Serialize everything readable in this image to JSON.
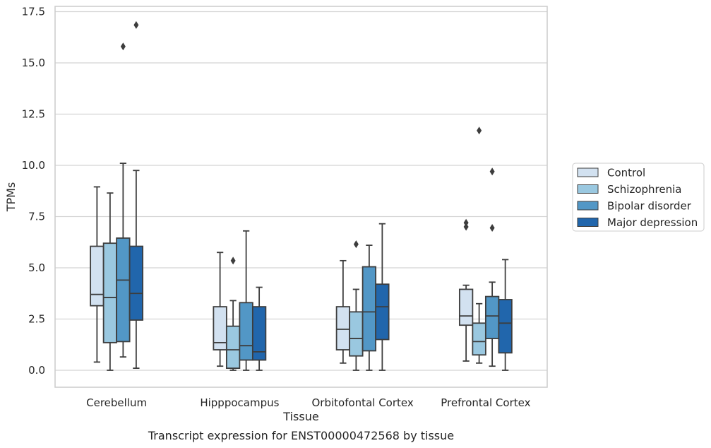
{
  "chart_data": {
    "type": "boxplot",
    "title": "",
    "caption": "Transcript expression for ENST00000472568 by tissue",
    "xlabel": "Tissue",
    "ylabel": "TPMs",
    "ylim": [
      -0.8,
      17.7
    ],
    "yticks": [
      0.0,
      2.5,
      5.0,
      7.5,
      10.0,
      12.5,
      15.0,
      17.5
    ],
    "ytick_labels": [
      "0.0",
      "2.5",
      "5.0",
      "7.5",
      "10.0",
      "12.5",
      "15.0",
      "17.5"
    ],
    "grid": "horizontal",
    "legend_position": "right",
    "categories": [
      "Cerebellum",
      "Hipppocampus",
      "Orbitofontal Cortex",
      "Prefrontal Cortex"
    ],
    "series": [
      {
        "name": "Control",
        "color": "#d2e1f0",
        "boxes": [
          {
            "whislo": 0.4,
            "q1": 3.15,
            "med": 3.7,
            "q3": 6.05,
            "whishi": 8.95,
            "fliers": []
          },
          {
            "whislo": 0.2,
            "q1": 1.0,
            "med": 1.35,
            "q3": 3.1,
            "whishi": 5.75,
            "fliers": []
          },
          {
            "whislo": 0.35,
            "q1": 1.0,
            "med": 2.0,
            "q3": 3.1,
            "whishi": 5.35,
            "fliers": []
          },
          {
            "whislo": 0.45,
            "q1": 2.2,
            "med": 2.65,
            "q3": 3.95,
            "whishi": 4.15,
            "fliers": [
              7.0,
              7.2
            ]
          }
        ]
      },
      {
        "name": "Schizophrenia",
        "color": "#9ac8e0",
        "boxes": [
          {
            "whislo": 0.0,
            "q1": 1.35,
            "med": 3.55,
            "q3": 6.2,
            "whishi": 8.65,
            "fliers": []
          },
          {
            "whislo": 0.0,
            "q1": 0.1,
            "med": 1.0,
            "q3": 2.15,
            "whishi": 3.4,
            "fliers": [
              5.35
            ]
          },
          {
            "whislo": 0.0,
            "q1": 0.7,
            "med": 1.55,
            "q3": 2.85,
            "whishi": 3.95,
            "fliers": [
              6.15
            ]
          },
          {
            "whislo": 0.35,
            "q1": 0.75,
            "med": 1.4,
            "q3": 2.3,
            "whishi": 3.25,
            "fliers": [
              11.7
            ]
          }
        ]
      },
      {
        "name": "Bipolar disorder",
        "color": "#5297c6",
        "boxes": [
          {
            "whislo": 0.65,
            "q1": 1.4,
            "med": 4.4,
            "q3": 6.45,
            "whishi": 10.1,
            "fliers": [
              15.8
            ]
          },
          {
            "whislo": 0.0,
            "q1": 0.5,
            "med": 1.2,
            "q3": 3.3,
            "whishi": 6.8,
            "fliers": []
          },
          {
            "whislo": 0.0,
            "q1": 0.95,
            "med": 2.85,
            "q3": 5.05,
            "whishi": 6.1,
            "fliers": []
          },
          {
            "whislo": 0.2,
            "q1": 1.55,
            "med": 2.65,
            "q3": 3.6,
            "whishi": 4.3,
            "fliers": [
              6.95,
              9.7
            ]
          }
        ]
      },
      {
        "name": "Major depression",
        "color": "#2166ac",
        "boxes": [
          {
            "whislo": 0.1,
            "q1": 2.45,
            "med": 3.75,
            "q3": 6.05,
            "whishi": 9.75,
            "fliers": [
              16.85
            ]
          },
          {
            "whislo": 0.0,
            "q1": 0.5,
            "med": 0.9,
            "q3": 3.1,
            "whishi": 4.05,
            "fliers": []
          },
          {
            "whislo": 0.0,
            "q1": 1.5,
            "med": 3.1,
            "q3": 4.2,
            "whishi": 7.15,
            "fliers": []
          },
          {
            "whislo": 0.0,
            "q1": 0.85,
            "med": 2.3,
            "q3": 3.45,
            "whishi": 5.4,
            "fliers": []
          }
        ]
      }
    ]
  }
}
